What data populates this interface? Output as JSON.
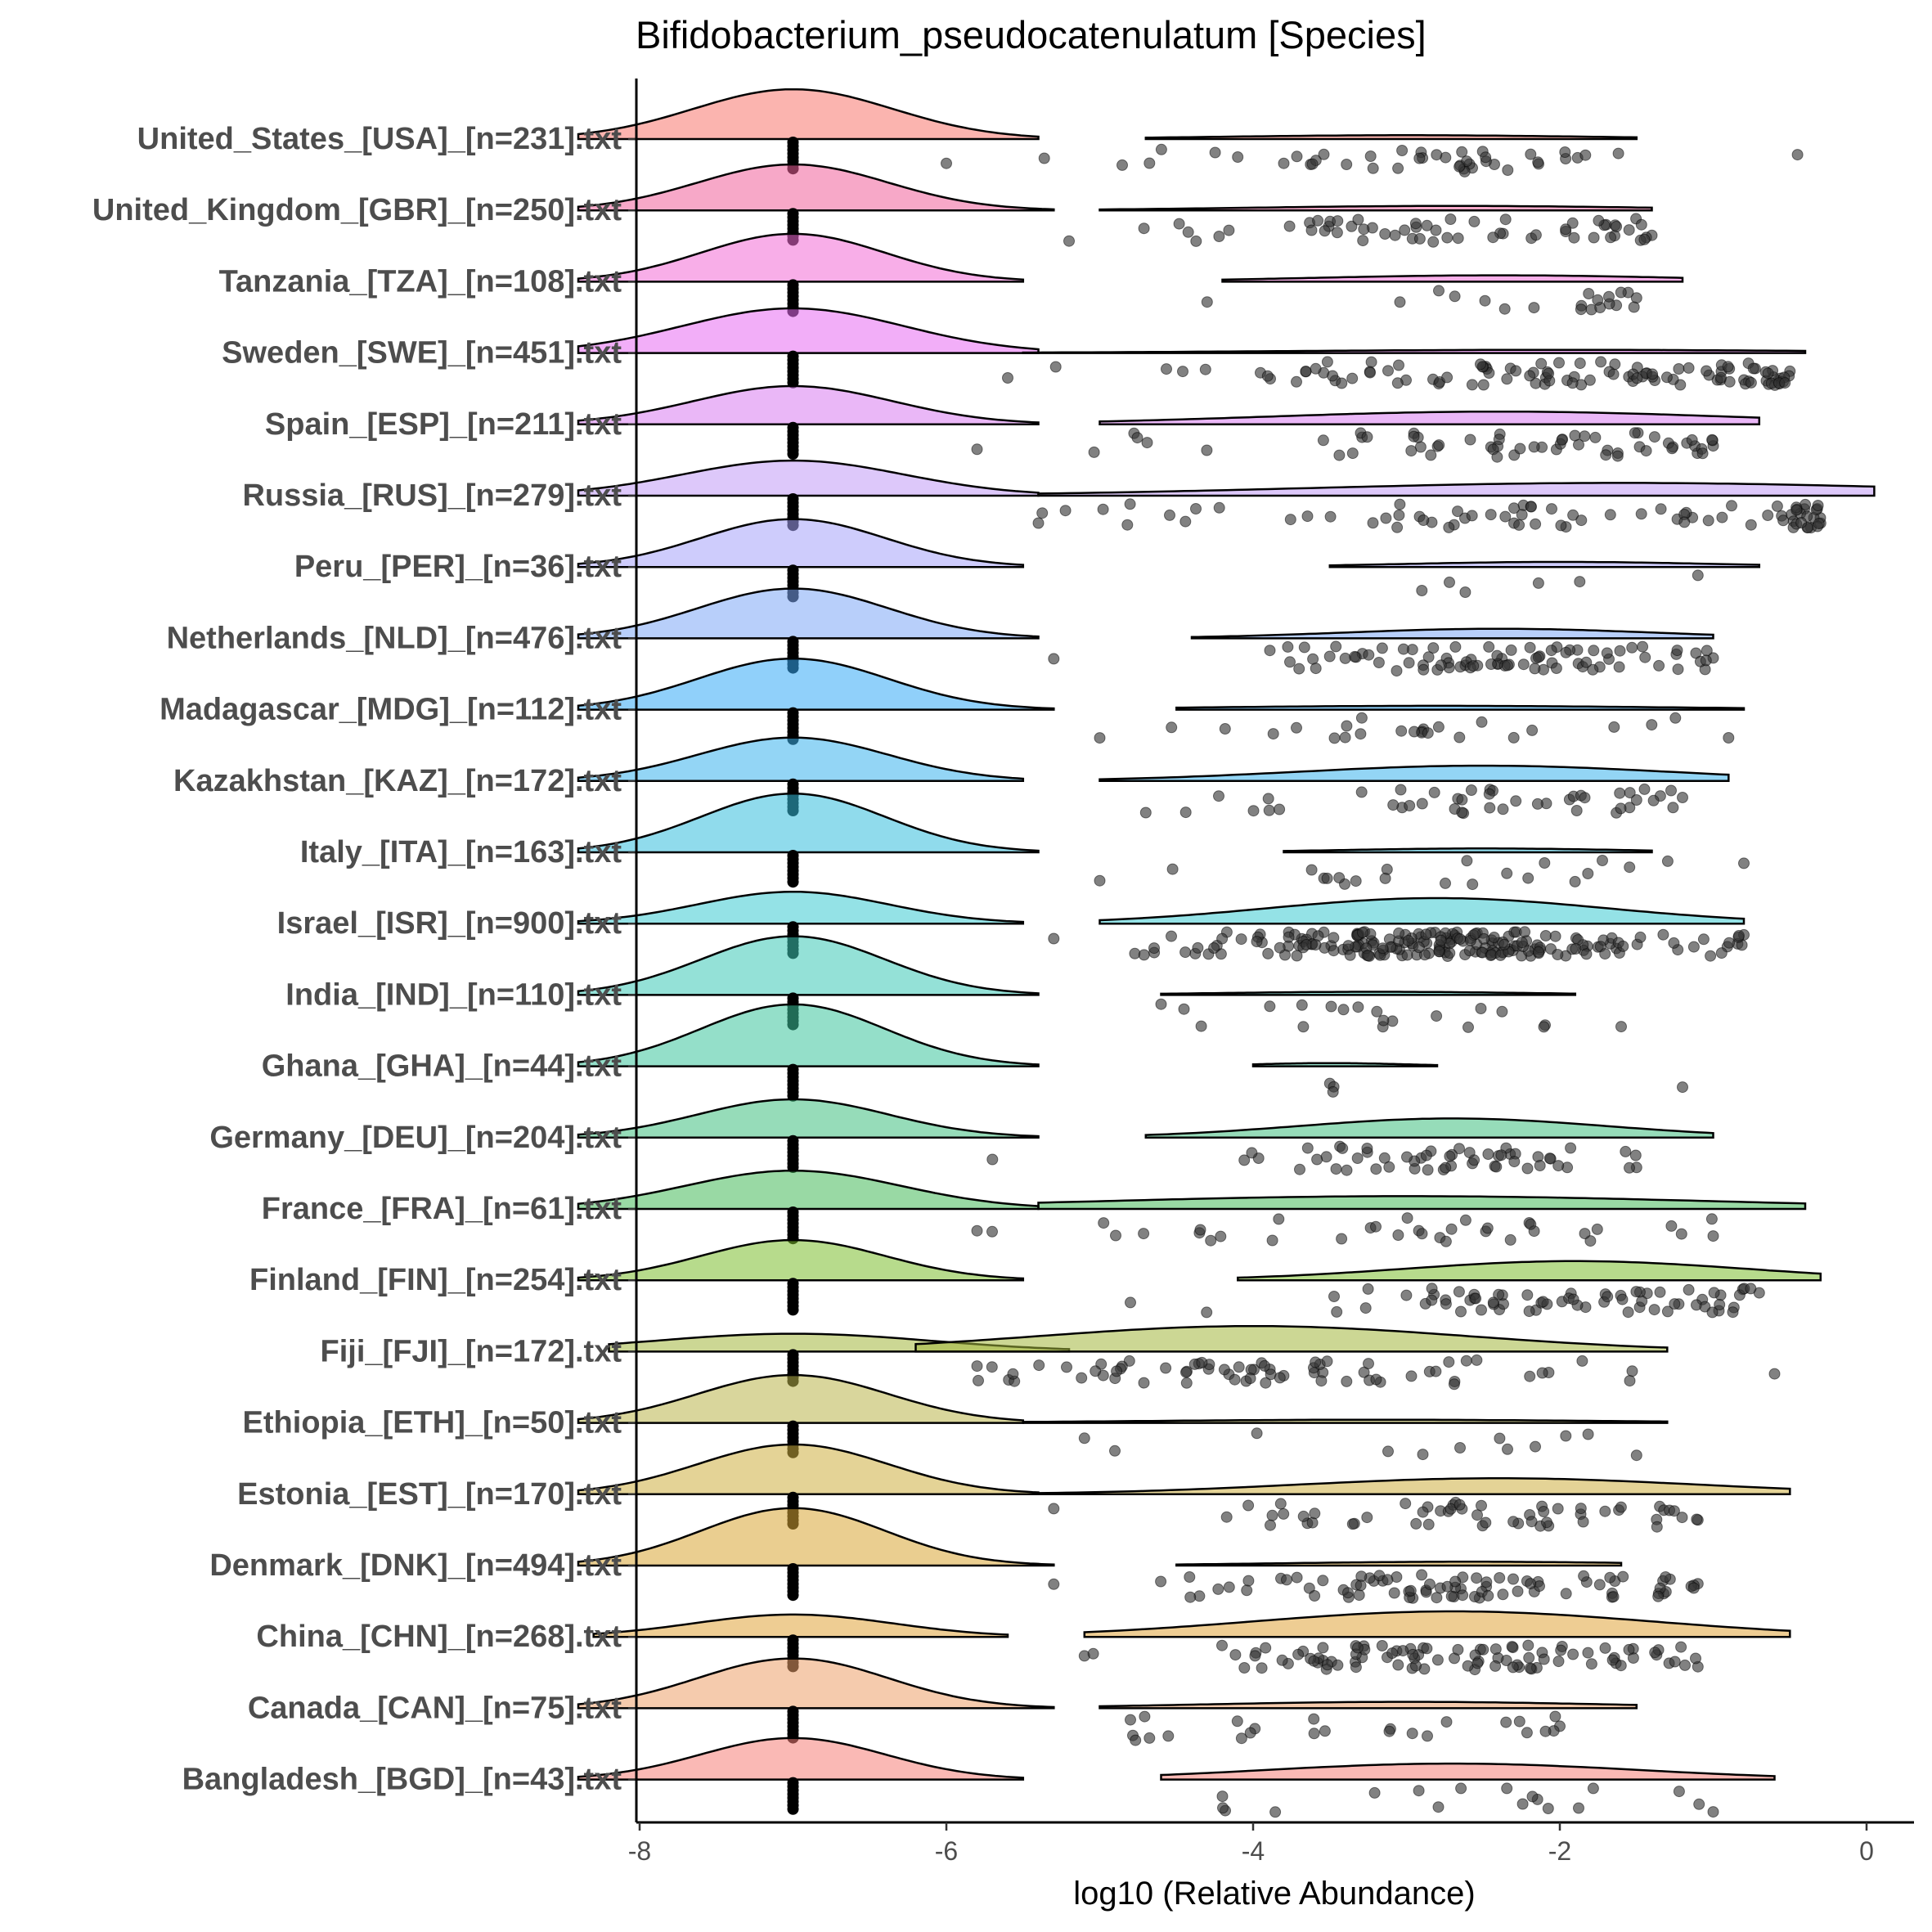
{
  "chart_data": {
    "type": "ridgeline-raincloud",
    "title": "Bifidobacterium_pseudocatenulatum [Species]",
    "xlabel": "log10 (Relative Abundance)",
    "ylabel": "",
    "xlim": [
      -8.4,
      0.4
    ],
    "xticks": [
      -8,
      -6,
      -4,
      -2,
      0
    ],
    "xtick_labels": [
      "-8",
      "-6",
      "-4",
      "-2",
      "0"
    ],
    "zero_value": -7,
    "categories": [
      {
        "label": "United_States_[USA]_[n=231].txt",
        "color": "#F8766D",
        "left": {
          "peak": -7.0,
          "sd": 0.65,
          "height": 0.78,
          "min": -8.4,
          "max": -5.4
        },
        "right": {
          "peak": -3.0,
          "sd": 1.2,
          "height": 0.06,
          "min": -4.7,
          "max": -1.5
        },
        "point_range": [
          -6.0,
          -0.45
        ],
        "n_points": 45
      },
      {
        "label": "United_Kingdom_[GBR]_[n=250].txt",
        "color": "#F0609A",
        "left": {
          "peak": -7.0,
          "sd": 0.62,
          "height": 0.72,
          "min": -8.4,
          "max": -5.3
        },
        "right": {
          "peak": -2.7,
          "sd": 1.3,
          "height": 0.07,
          "min": -5.0,
          "max": -1.4
        },
        "point_range": [
          -5.2,
          -1.4
        ],
        "n_points": 60
      },
      {
        "label": "Tanzania_[TZA]_[n=108].txt",
        "color": "#F36BD6",
        "left": {
          "peak": -7.0,
          "sd": 0.6,
          "height": 0.75,
          "min": -8.4,
          "max": -5.5
        },
        "right": {
          "peak": -2.4,
          "sd": 1.2,
          "height": 0.1,
          "min": -4.2,
          "max": -1.2
        },
        "point_range": [
          -4.3,
          -1.5
        ],
        "n_points": 20
      },
      {
        "label": "Sweden_[SWE]_[n=451].txt",
        "color": "#E76BF3",
        "left": {
          "peak": -7.0,
          "sd": 0.72,
          "height": 0.7,
          "min": -8.4,
          "max": -5.4
        },
        "right": {
          "peak": -2.0,
          "sd": 1.8,
          "height": 0.05,
          "min": -5.5,
          "max": -0.4
        },
        "point_range": [
          -5.6,
          -0.5
        ],
        "n_points": 110
      },
      {
        "label": "Spain_[ESP]_[n=211].txt",
        "color": "#D97CF0",
        "left": {
          "peak": -7.0,
          "sd": 0.65,
          "height": 0.6,
          "min": -8.4,
          "max": -5.4
        },
        "right": {
          "peak": -2.4,
          "sd": 1.5,
          "height": 0.2,
          "min": -5.0,
          "max": -0.7
        },
        "point_range": [
          -5.8,
          -1.0
        ],
        "n_points": 60
      },
      {
        "label": "Russia_[RUS]_[n=279].txt",
        "color": "#C19AF5",
        "left": {
          "peak": -7.0,
          "sd": 0.72,
          "height": 0.55,
          "min": -8.4,
          "max": -5.4
        },
        "right": {
          "peak": -1.6,
          "sd": 2.0,
          "height": 0.2,
          "min": -5.4,
          "max": 0.05
        },
        "point_range": [
          -5.4,
          -0.3
        ],
        "n_points": 80
      },
      {
        "label": "Peru_[PER]_[n=36].txt",
        "color": "#A5A3FA",
        "left": {
          "peak": -7.0,
          "sd": 0.6,
          "height": 0.75,
          "min": -8.4,
          "max": -5.5
        },
        "right": {
          "peak": -2.0,
          "sd": 1.0,
          "height": 0.08,
          "min": -3.5,
          "max": -0.7
        },
        "point_range": [
          -2.9,
          -1.1
        ],
        "n_points": 6
      },
      {
        "label": "Netherlands_[NLD]_[n=476].txt",
        "color": "#7EA8F5",
        "left": {
          "peak": -7.0,
          "sd": 0.62,
          "height": 0.78,
          "min": -8.4,
          "max": -5.4
        },
        "right": {
          "peak": -2.4,
          "sd": 1.0,
          "height": 0.15,
          "min": -4.4,
          "max": -1.0
        },
        "point_range": [
          -5.3,
          -1.0
        ],
        "n_points": 85
      },
      {
        "label": "Madagascar_[MDG]_[n=112].txt",
        "color": "#35A9F5",
        "left": {
          "peak": -7.0,
          "sd": 0.62,
          "height": 0.8,
          "min": -8.4,
          "max": -5.3
        },
        "right": {
          "peak": -2.8,
          "sd": 1.5,
          "height": 0.06,
          "min": -4.5,
          "max": -0.8
        },
        "point_range": [
          -5.0,
          -0.9
        ],
        "n_points": 25
      },
      {
        "label": "Kazakhstan_[KAZ]_[n=172].txt",
        "color": "#3AB3EC",
        "left": {
          "peak": -7.0,
          "sd": 0.62,
          "height": 0.68,
          "min": -8.4,
          "max": -5.5
        },
        "right": {
          "peak": -2.5,
          "sd": 1.2,
          "height": 0.24,
          "min": -5.0,
          "max": -0.9
        },
        "point_range": [
          -4.7,
          -1.2
        ],
        "n_points": 45
      },
      {
        "label": "Italy_[ITA]_[n=163].txt",
        "color": "#35BEDD",
        "left": {
          "peak": -7.0,
          "sd": 0.6,
          "height": 0.92,
          "min": -8.4,
          "max": -5.4
        },
        "right": {
          "peak": -2.5,
          "sd": 0.9,
          "height": 0.06,
          "min": -3.8,
          "max": -1.4
        },
        "point_range": [
          -5.0,
          -0.8
        ],
        "n_points": 22
      },
      {
        "label": "Israel_[ISR]_[n=900].txt",
        "color": "#3CCBD2",
        "left": {
          "peak": -7.0,
          "sd": 0.62,
          "height": 0.5,
          "min": -8.4,
          "max": -5.5
        },
        "right": {
          "peak": -2.8,
          "sd": 1.1,
          "height": 0.4,
          "min": -5.0,
          "max": -0.8
        },
        "point_range": [
          -5.3,
          -0.8
        ],
        "n_points": 210
      },
      {
        "label": "India_[IND]_[n=110].txt",
        "color": "#3DC8B7",
        "left": {
          "peak": -7.0,
          "sd": 0.6,
          "height": 0.92,
          "min": -8.4,
          "max": -5.4
        },
        "right": {
          "peak": -3.2,
          "sd": 1.0,
          "height": 0.05,
          "min": -4.6,
          "max": -1.9
        },
        "point_range": [
          -4.6,
          -1.6
        ],
        "n_points": 20
      },
      {
        "label": "Ghana_[GHA]_[n=44].txt",
        "color": "#3CC59C",
        "left": {
          "peak": -7.0,
          "sd": 0.6,
          "height": 0.97,
          "min": -8.4,
          "max": -5.4
        },
        "right": {
          "peak": -3.5,
          "sd": 0.5,
          "height": 0.05,
          "min": -4.0,
          "max": -2.8
        },
        "point_range": [
          -3.5,
          -1.2
        ],
        "n_points": 4
      },
      {
        "label": "Germany_[DEU]_[n=204].txt",
        "color": "#3FC080",
        "left": {
          "peak": -7.0,
          "sd": 0.62,
          "height": 0.6,
          "min": -8.4,
          "max": -5.4
        },
        "right": {
          "peak": -2.7,
          "sd": 1.0,
          "height": 0.3,
          "min": -4.7,
          "max": -1.0
        },
        "point_range": [
          -5.7,
          -1.5
        ],
        "n_points": 55
      },
      {
        "label": "France_[FRA]_[n=61].txt",
        "color": "#45BA5A",
        "left": {
          "peak": -7.0,
          "sd": 0.7,
          "height": 0.6,
          "min": -8.4,
          "max": -5.4
        },
        "right": {
          "peak": -3.0,
          "sd": 2.0,
          "height": 0.2,
          "min": -5.4,
          "max": -0.4
        },
        "point_range": [
          -5.8,
          -1.0
        ],
        "n_points": 35
      },
      {
        "label": "Finland_[FIN]_[n=254].txt",
        "color": "#7BBE2E",
        "left": {
          "peak": -7.0,
          "sd": 0.6,
          "height": 0.63,
          "min": -8.4,
          "max": -5.5
        },
        "right": {
          "peak": -1.9,
          "sd": 1.1,
          "height": 0.3,
          "min": -4.1,
          "max": -0.3
        },
        "point_range": [
          -4.8,
          -0.7
        ],
        "n_points": 70
      },
      {
        "label": "Fiji_[FJI]_[n=172].txt",
        "color": "#A2B73D",
        "left": {
          "peak": -7.0,
          "sd": 0.9,
          "height": 0.28,
          "min": -8.2,
          "max": -5.2
        },
        "right": {
          "peak": -4.0,
          "sd": 1.4,
          "height": 0.4,
          "min": -6.2,
          "max": -1.3
        },
        "point_range": [
          -5.8,
          -0.6
        ],
        "n_points": 70
      },
      {
        "label": "Ethiopia_[ETH]_[n=50].txt",
        "color": "#B9B44A",
        "left": {
          "peak": -7.0,
          "sd": 0.62,
          "height": 0.75,
          "min": -8.4,
          "max": -5.5
        },
        "right": {
          "peak": -3.2,
          "sd": 1.5,
          "height": 0.05,
          "min": -5.5,
          "max": -1.3
        },
        "point_range": [
          -5.1,
          -1.5
        ],
        "n_points": 12
      },
      {
        "label": "Estonia_[EST]_[n=170].txt",
        "color": "#CDAE3F",
        "left": {
          "peak": -7.0,
          "sd": 0.62,
          "height": 0.78,
          "min": -8.4,
          "max": -5.4
        },
        "right": {
          "peak": -2.4,
          "sd": 1.3,
          "height": 0.25,
          "min": -5.4,
          "max": -0.5
        },
        "point_range": [
          -5.3,
          -1.1
        ],
        "n_points": 55
      },
      {
        "label": "Denmark_[DNK]_[n=494].txt",
        "color": "#D9A634",
        "left": {
          "peak": -7.0,
          "sd": 0.6,
          "height": 0.9,
          "min": -8.4,
          "max": -5.3
        },
        "right": {
          "peak": -2.6,
          "sd": 1.2,
          "height": 0.06,
          "min": -4.5,
          "max": -1.6
        },
        "point_range": [
          -5.3,
          -1.1
        ],
        "n_points": 85
      },
      {
        "label": "China_[CHN]_[n=268].txt",
        "color": "#E0A43A",
        "left": {
          "peak": -7.0,
          "sd": 0.65,
          "height": 0.35,
          "min": -8.3,
          "max": -5.6
        },
        "right": {
          "peak": -2.7,
          "sd": 1.3,
          "height": 0.4,
          "min": -5.1,
          "max": -0.5
        },
        "point_range": [
          -5.1,
          -1.1
        ],
        "n_points": 95
      },
      {
        "label": "Canada_[CAN]_[n=75].txt",
        "color": "#EDA069",
        "left": {
          "peak": -7.0,
          "sd": 0.62,
          "height": 0.78,
          "min": -8.4,
          "max": -5.3
        },
        "right": {
          "peak": -3.0,
          "sd": 1.3,
          "height": 0.1,
          "min": -5.0,
          "max": -1.5
        },
        "point_range": [
          -4.8,
          -2.0
        ],
        "n_points": 25
      },
      {
        "label": "Bangladesh_[BGD]_[n=43].txt",
        "color": "#F57F78",
        "left": {
          "peak": -7.0,
          "sd": 0.6,
          "height": 0.65,
          "min": -8.4,
          "max": -5.5
        },
        "right": {
          "peak": -2.7,
          "sd": 1.2,
          "height": 0.25,
          "min": -4.6,
          "max": -0.6
        },
        "point_range": [
          -4.2,
          -1.0
        ],
        "n_points": 18
      }
    ]
  }
}
